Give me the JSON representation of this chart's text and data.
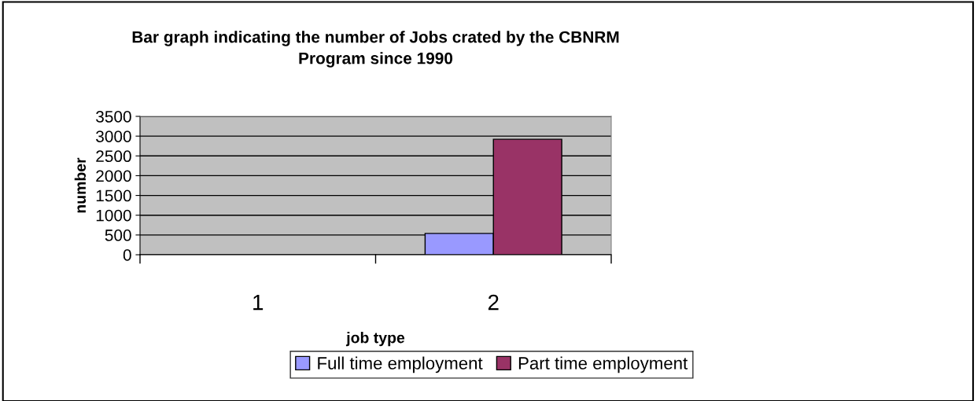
{
  "chart_data": {
    "type": "bar",
    "title": "Bar graph indicating the number of Jobs crated by the CBNRM\nProgram since 1990",
    "xlabel": "job type",
    "ylabel": "number",
    "categories": [
      "1",
      "2"
    ],
    "series": [
      {
        "name": "Full time employment",
        "color": "#9999ff",
        "values": [
          null,
          540
        ]
      },
      {
        "name": "Part time employment",
        "color": "#993366",
        "values": [
          null,
          2920
        ]
      }
    ],
    "ylim": [
      0,
      3500
    ],
    "yticks": [
      0,
      500,
      1000,
      1500,
      2000,
      2500,
      3000,
      3500
    ],
    "grid": "y",
    "legend": "bottom"
  }
}
